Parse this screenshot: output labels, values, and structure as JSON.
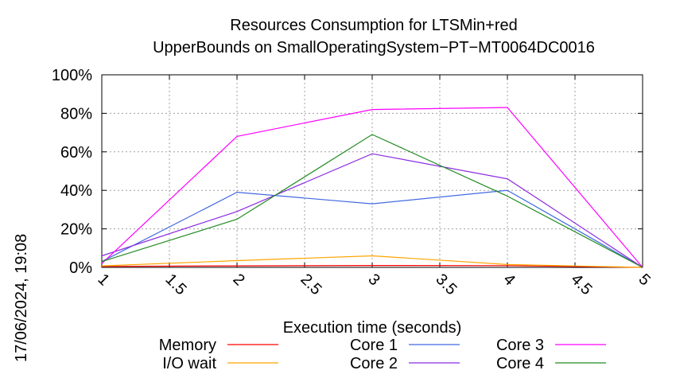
{
  "chart_data": {
    "type": "line",
    "title_lines": [
      "Resources Consumption for LTSMin+red",
      "UpperBounds on SmallOperatingSystem−PT−MT0064DC0016"
    ],
    "xlabel": "Execution time (seconds)",
    "ylabel": "",
    "xlim": [
      1,
      5
    ],
    "ylim": [
      0,
      100
    ],
    "x_ticks": [
      1,
      1.5,
      2,
      2.5,
      3,
      3.5,
      4,
      4.5,
      5
    ],
    "x_tick_labels": [
      "1",
      "1.5",
      "2",
      "2.5",
      "3",
      "3.5",
      "4",
      "4.5",
      "5"
    ],
    "y_ticks": [
      0,
      20,
      40,
      60,
      80,
      100
    ],
    "y_tick_labels": [
      "0%",
      "20%",
      "40%",
      "60%",
      "80%",
      "100%"
    ],
    "grid": true,
    "legend_position": "bottom",
    "timestamp": "17/06/2024, 19:08",
    "x": [
      1,
      2,
      3,
      4,
      5
    ],
    "series": [
      {
        "name": "Memory",
        "color": "#ff0000",
        "values": [
          0.5,
          0.8,
          1.0,
          0.9,
          0
        ]
      },
      {
        "name": "I/O wait",
        "color": "#ffa500",
        "values": [
          0.8,
          3.5,
          6,
          1.5,
          0
        ]
      },
      {
        "name": "Core 1",
        "color": "#4169e1",
        "values": [
          3,
          39,
          33,
          40,
          0
        ]
      },
      {
        "name": "Core 2",
        "color": "#8a2be2",
        "values": [
          6,
          29,
          59,
          46,
          0
        ]
      },
      {
        "name": "Core 3",
        "color": "#ff00ff",
        "values": [
          2,
          68,
          82,
          83,
          0
        ]
      },
      {
        "name": "Core 4",
        "color": "#228b22",
        "values": [
          3,
          25,
          69,
          37,
          0
        ]
      }
    ]
  }
}
